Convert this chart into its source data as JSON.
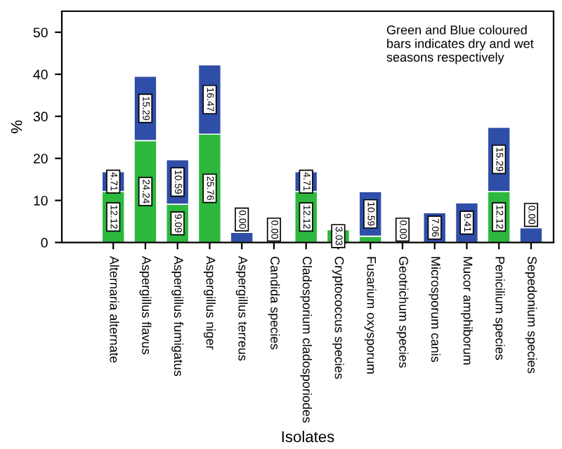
{
  "chart_data": {
    "type": "bar",
    "stacked": true,
    "xlabel": "Isolates",
    "ylabel": "%",
    "categories": [
      "Alternaria alternate",
      "Aspergillus flavus",
      "Aspergillus fumigatus",
      "Aspergillus niger",
      "Aspergillus terreus",
      "Candida species",
      "Cladosporium cladosporiodes",
      "Cryptococcus species",
      "Fusarium oxysporum",
      "Geotrichum species",
      "Microsporum canis",
      "Mucor amphiborum",
      "Penicilium species",
      "Sepedonium species"
    ],
    "series": [
      {
        "color": "#2db83d",
        "values": [
          12.12,
          24.24,
          9.09,
          25.76,
          0,
          0,
          12.12,
          3.03,
          1.5,
          0,
          0,
          0,
          12.12,
          0
        ],
        "value_labels": [
          "12.12",
          "24.24",
          "9.09",
          "25.76",
          "0.00",
          "0.00",
          "12.12",
          "3.03",
          null,
          "0.00",
          null,
          null,
          "12.12",
          "0.00"
        ]
      },
      {
        "color": "#2f4ea8",
        "values": [
          4.71,
          15.29,
          10.59,
          16.47,
          2.4,
          0,
          4.71,
          0,
          10.59,
          0,
          7.06,
          9.41,
          15.29,
          3.5
        ],
        "value_labels": [
          "4.71",
          "15.29",
          "10.59",
          "16.47",
          null,
          null,
          "4.71",
          null,
          "10.59",
          null,
          "7.06",
          "9.41",
          "15.29",
          null
        ]
      }
    ],
    "ylim": [
      0,
      55
    ],
    "yticks": [
      0,
      10,
      20,
      30,
      40,
      50
    ],
    "grid": false,
    "legend": false,
    "annotations": [
      "Green and Blue coloured\nbars indicates dry and wet\nseasons respectively"
    ]
  }
}
